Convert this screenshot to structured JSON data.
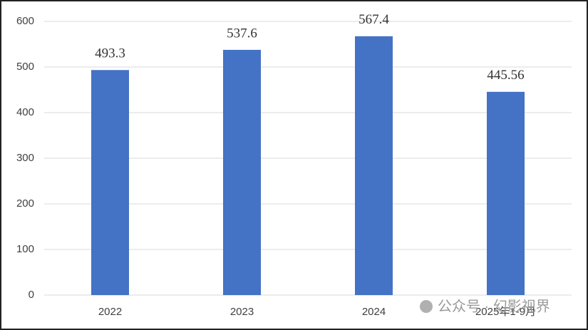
{
  "chart_data": {
    "type": "bar",
    "categories": [
      "2022",
      "2023",
      "2024",
      "2025年1-9月"
    ],
    "values": [
      493.3,
      537.6,
      567.4,
      445.56
    ],
    "color": "#4472c4",
    "ylim": [
      0,
      600
    ],
    "yticks": [
      0,
      100,
      200,
      300,
      400,
      500,
      600
    ],
    "grid": true
  },
  "watermark": "公众号 · 幻影视界"
}
